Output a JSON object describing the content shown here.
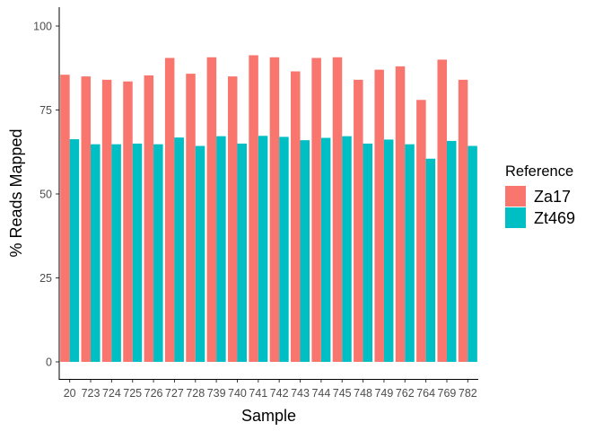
{
  "chart_data": {
    "type": "bar",
    "title": "",
    "xlabel": "Sample",
    "ylabel": "% Reads Mapped",
    "ylim": [
      0,
      105
    ],
    "yticks": [
      0,
      25,
      50,
      75,
      100
    ],
    "grid": false,
    "legend": {
      "title": "Reference",
      "position": "right"
    },
    "categories": [
      "20",
      "723",
      "724",
      "725",
      "726",
      "727",
      "728",
      "739",
      "740",
      "741",
      "742",
      "743",
      "744",
      "745",
      "748",
      "749",
      "762",
      "764",
      "769",
      "782"
    ],
    "series": [
      {
        "name": "Za17",
        "color": "#F8766D",
        "values": [
          85.5,
          85.0,
          84.0,
          83.5,
          85.3,
          90.5,
          85.8,
          90.7,
          85.0,
          91.3,
          90.7,
          86.5,
          90.5,
          90.7,
          84.0,
          87.0,
          88.0,
          78.0,
          90.0,
          84.0
        ]
      },
      {
        "name": "Zt469",
        "color": "#00BFC4",
        "values": [
          66.3,
          64.8,
          64.8,
          65.0,
          64.8,
          66.8,
          64.3,
          67.2,
          65.0,
          67.3,
          67.0,
          66.0,
          66.7,
          67.2,
          65.0,
          66.2,
          64.8,
          60.5,
          65.8,
          64.3
        ]
      }
    ]
  }
}
